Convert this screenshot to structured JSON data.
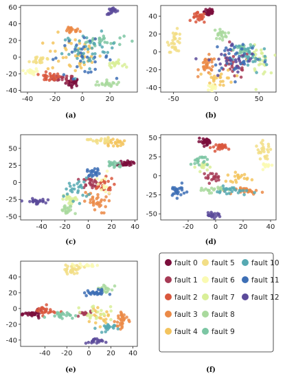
{
  "fault_labels": [
    "fault 0",
    "fault 1",
    "fault 2",
    "fault 3",
    "fault 4",
    "fault 5",
    "fault 6",
    "fault 7",
    "fault 8",
    "fault 9",
    "fault 10",
    "fault 11",
    "fault 12"
  ],
  "colors": [
    "#7b0e3c",
    "#a63a55",
    "#d9573d",
    "#eb8a47",
    "#f3c45e",
    "#f2de86",
    "#fafab2",
    "#d9ef98",
    "#a9d99d",
    "#7cc6a3",
    "#56a9b2",
    "#3d6fb5",
    "#5b4a9a"
  ],
  "chart_data": [
    {
      "panel": "(a)",
      "type": "scatter",
      "xlim": [
        -45,
        40
      ],
      "ylim": [
        -42,
        62
      ],
      "xticks": [
        -40,
        -20,
        0,
        20
      ],
      "yticks": [
        -40,
        -20,
        0,
        20,
        40,
        60
      ],
      "clusters": [
        {
          "fault": 0,
          "x": -7,
          "y": -30,
          "sx": 2.5,
          "sy": 2.5,
          "n": 30
        },
        {
          "fault": 1,
          "x": -14,
          "y": -26,
          "sx": 4,
          "sy": 2,
          "n": 20
        },
        {
          "fault": 2,
          "x": -24,
          "y": -24,
          "sx": 4,
          "sy": 2.5,
          "n": 25
        },
        {
          "fault": 3,
          "x": -8,
          "y": 32,
          "sx": 3,
          "sy": 2,
          "n": 20
        },
        {
          "fault": 4,
          "x": -6,
          "y": 4,
          "sx": 10,
          "sy": 12,
          "n": 45
        },
        {
          "fault": 5,
          "x": -30,
          "y": -3,
          "sx": 4,
          "sy": 3,
          "n": 20
        },
        {
          "fault": 6,
          "x": -38,
          "y": -17,
          "sx": 3,
          "sy": 2,
          "n": 20
        },
        {
          "fault": 7,
          "x": 24,
          "y": -8,
          "sx": 3,
          "sy": 2,
          "n": 20
        },
        {
          "fault": 8,
          "x": 18,
          "y": -32,
          "sx": 4,
          "sy": 2,
          "n": 20
        },
        {
          "fault": 9,
          "x": 14,
          "y": 20,
          "sx": 8,
          "sy": 3,
          "n": 25
        },
        {
          "fault": 10,
          "x": 5,
          "y": 8,
          "sx": 10,
          "sy": 10,
          "n": 40
        },
        {
          "fault": 11,
          "x": -2,
          "y": 0,
          "sx": 12,
          "sy": 10,
          "n": 30
        },
        {
          "fault": 12,
          "x": 22,
          "y": 55,
          "sx": 2,
          "sy": 2,
          "n": 20
        }
      ]
    },
    {
      "panel": "(b)",
      "type": "scatter",
      "xlim": [
        -65,
        70
      ],
      "ylim": [
        -45,
        52
      ],
      "xticks": [
        -50,
        0,
        50
      ],
      "yticks": [
        -40,
        -20,
        0,
        20,
        40
      ],
      "clusters": [
        {
          "fault": 0,
          "x": -8,
          "y": 45,
          "sx": 3,
          "sy": 3,
          "n": 30
        },
        {
          "fault": 1,
          "x": 20,
          "y": -15,
          "sx": 10,
          "sy": 8,
          "n": 30
        },
        {
          "fault": 2,
          "x": -20,
          "y": 38,
          "sx": 4,
          "sy": 3,
          "n": 25
        },
        {
          "fault": 3,
          "x": -10,
          "y": -15,
          "sx": 5,
          "sy": 5,
          "n": 30
        },
        {
          "fault": 4,
          "x": 5,
          "y": -30,
          "sx": 8,
          "sy": 5,
          "n": 25
        },
        {
          "fault": 5,
          "x": -48,
          "y": 12,
          "sx": 4,
          "sy": 6,
          "n": 30
        },
        {
          "fault": 6,
          "x": -5,
          "y": -40,
          "sx": 3,
          "sy": 2,
          "n": 15
        },
        {
          "fault": 7,
          "x": 50,
          "y": -10,
          "sx": 6,
          "sy": 8,
          "n": 30
        },
        {
          "fault": 8,
          "x": 5,
          "y": 20,
          "sx": 4,
          "sy": 3,
          "n": 20
        },
        {
          "fault": 9,
          "x": 30,
          "y": 2,
          "sx": 5,
          "sy": 3,
          "n": 25
        },
        {
          "fault": 10,
          "x": 40,
          "y": -5,
          "sx": 10,
          "sy": 10,
          "n": 30
        },
        {
          "fault": 11,
          "x": 25,
          "y": -5,
          "sx": 15,
          "sy": 10,
          "n": 35
        },
        {
          "fault": 12,
          "x": 20,
          "y": -10,
          "sx": 15,
          "sy": 10,
          "n": 25
        }
      ]
    },
    {
      "panel": "(c)",
      "type": "scatter",
      "xlim": [
        -58,
        42
      ],
      "ylim": [
        -55,
        70
      ],
      "xticks": [
        -40,
        -20,
        0,
        20,
        40
      ],
      "yticks": [
        -50,
        -25,
        0,
        25,
        50
      ],
      "clusters": [
        {
          "fault": 0,
          "x": 32,
          "y": 28,
          "sx": 3,
          "sy": 2,
          "n": 30
        },
        {
          "fault": 1,
          "x": 2,
          "y": 0,
          "sx": 4,
          "sy": 4,
          "n": 25
        },
        {
          "fault": 2,
          "x": 12,
          "y": -5,
          "sx": 5,
          "sy": 6,
          "n": 25
        },
        {
          "fault": 3,
          "x": 6,
          "y": -30,
          "sx": 5,
          "sy": 8,
          "n": 30
        },
        {
          "fault": 4,
          "x": 22,
          "y": 58,
          "sx": 4,
          "sy": 3,
          "n": 25
        },
        {
          "fault": 5,
          "x": 10,
          "y": 62,
          "sx": 5,
          "sy": 2,
          "n": 20
        },
        {
          "fault": 6,
          "x": 12,
          "y": -5,
          "sx": 5,
          "sy": 10,
          "n": 15
        },
        {
          "fault": 7,
          "x": -15,
          "y": -25,
          "sx": 3,
          "sy": 4,
          "n": 20
        },
        {
          "fault": 8,
          "x": -18,
          "y": -42,
          "sx": 3,
          "sy": 4,
          "n": 20
        },
        {
          "fault": 9,
          "x": 22,
          "y": 27,
          "sx": 4,
          "sy": 3,
          "n": 20
        },
        {
          "fault": 10,
          "x": -10,
          "y": -10,
          "sx": 5,
          "sy": 8,
          "n": 25
        },
        {
          "fault": 11,
          "x": 5,
          "y": 15,
          "sx": 3,
          "sy": 3,
          "n": 20
        },
        {
          "fault": 12,
          "x": -45,
          "y": -28,
          "sx": 4,
          "sy": 2,
          "n": 25
        }
      ]
    },
    {
      "panel": "(d)",
      "type": "scatter",
      "xlim": [
        -40,
        44
      ],
      "ylim": [
        -58,
        54
      ],
      "xticks": [
        -20,
        0,
        20,
        40
      ],
      "yticks": [
        -50,
        -25,
        0,
        25,
        50
      ],
      "clusters": [
        {
          "fault": 0,
          "x": -7,
          "y": 45,
          "sx": 3,
          "sy": 2,
          "n": 30
        },
        {
          "fault": 1,
          "x": -3,
          "y": -2,
          "sx": 3,
          "sy": 3,
          "n": 20
        },
        {
          "fault": 2,
          "x": 5,
          "y": 38,
          "sx": 4,
          "sy": 2,
          "n": 25
        },
        {
          "fault": 3,
          "x": 25,
          "y": -20,
          "sx": 5,
          "sy": 2,
          "n": 25
        },
        {
          "fault": 4,
          "x": 16,
          "y": -2,
          "sx": 4,
          "sy": 3,
          "n": 20
        },
        {
          "fault": 5,
          "x": 35,
          "y": 32,
          "sx": 3,
          "sy": 6,
          "n": 25
        },
        {
          "fault": 6,
          "x": 37,
          "y": 14,
          "sx": 2,
          "sy": 2,
          "n": 10
        },
        {
          "fault": 7,
          "x": -8,
          "y": 12,
          "sx": 3,
          "sy": 3,
          "n": 15
        },
        {
          "fault": 8,
          "x": -4,
          "y": -18,
          "sx": 5,
          "sy": 2,
          "n": 20
        },
        {
          "fault": 9,
          "x": -12,
          "y": 20,
          "sx": 3,
          "sy": 4,
          "n": 20
        },
        {
          "fault": 10,
          "x": 12,
          "y": -20,
          "sx": 6,
          "sy": 3,
          "n": 25
        },
        {
          "fault": 11,
          "x": -28,
          "y": -20,
          "sx": 3,
          "sy": 4,
          "n": 25
        },
        {
          "fault": 12,
          "x": -2,
          "y": -52,
          "sx": 3,
          "sy": 1.5,
          "n": 20
        }
      ]
    },
    {
      "panel": "(e)",
      "type": "scatter",
      "xlim": [
        -62,
        44
      ],
      "ylim": [
        -48,
        60
      ],
      "xticks": [
        -40,
        -20,
        0,
        20,
        40
      ],
      "yticks": [
        -40,
        -20,
        0,
        20,
        40
      ],
      "clusters": [
        {
          "fault": 0,
          "x": -50,
          "y": -7,
          "sx": 4,
          "sy": 2,
          "n": 30
        },
        {
          "fault": 1,
          "x": -5,
          "y": -7,
          "sx": 4,
          "sy": 2,
          "n": 15
        },
        {
          "fault": 2,
          "x": -40,
          "y": -3,
          "sx": 5,
          "sy": 3,
          "n": 25
        },
        {
          "fault": 3,
          "x": 30,
          "y": -15,
          "sx": 3,
          "sy": 8,
          "n": 30
        },
        {
          "fault": 4,
          "x": 10,
          "y": -12,
          "sx": 4,
          "sy": 5,
          "n": 20
        },
        {
          "fault": 5,
          "x": -15,
          "y": 50,
          "sx": 5,
          "sy": 3,
          "n": 30
        },
        {
          "fault": 6,
          "x": 0,
          "y": 55,
          "sx": 5,
          "sy": 1,
          "n": 12
        },
        {
          "fault": 7,
          "x": 5,
          "y": -5,
          "sx": 8,
          "sy": 5,
          "n": 20
        },
        {
          "fault": 8,
          "x": 15,
          "y": 25,
          "sx": 4,
          "sy": 3,
          "n": 20
        },
        {
          "fault": 9,
          "x": -25,
          "y": -8,
          "sx": 6,
          "sy": 2,
          "n": 20
        },
        {
          "fault": 10,
          "x": 15,
          "y": -25,
          "sx": 4,
          "sy": 3,
          "n": 20
        },
        {
          "fault": 11,
          "x": 5,
          "y": 20,
          "sx": 5,
          "sy": 2,
          "n": 25
        },
        {
          "fault": 12,
          "x": 5,
          "y": -42,
          "sx": 4,
          "sy": 2,
          "n": 20
        }
      ]
    }
  ],
  "panel_labels": [
    "(a)",
    "(b)",
    "(c)",
    "(d)",
    "(e)",
    "(f)"
  ]
}
